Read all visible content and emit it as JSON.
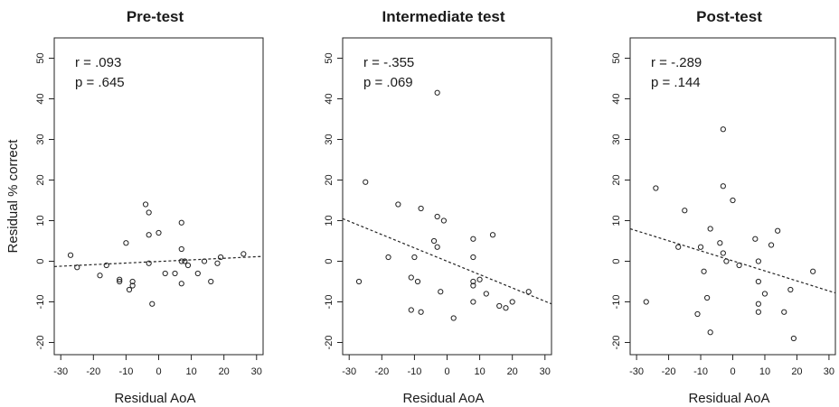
{
  "chart_data": [
    {
      "type": "scatter",
      "title": "Pre-test",
      "xlabel": "Residual AoA",
      "ylabel": "Residual % correct",
      "xlim": [
        -32,
        32
      ],
      "ylim": [
        -23,
        55
      ],
      "xticks": [
        -30,
        -20,
        -10,
        0,
        10,
        20,
        30
      ],
      "yticks": [
        -20,
        -10,
        0,
        10,
        20,
        30,
        40,
        50
      ],
      "annotations": [
        "r = .093",
        "p = .645"
      ],
      "trend_line": {
        "x": [
          -32,
          32
        ],
        "y": [
          -1.3,
          1.2
        ]
      },
      "points": [
        {
          "x": -27,
          "y": 1.5
        },
        {
          "x": -25,
          "y": -1.5
        },
        {
          "x": -18,
          "y": -3.5
        },
        {
          "x": -16,
          "y": -1
        },
        {
          "x": -12,
          "y": -4.5
        },
        {
          "x": -12,
          "y": -5
        },
        {
          "x": -10,
          "y": 4.5
        },
        {
          "x": -9,
          "y": -7
        },
        {
          "x": -8,
          "y": -5
        },
        {
          "x": -8,
          "y": -6
        },
        {
          "x": -4,
          "y": 14
        },
        {
          "x": -3,
          "y": 12
        },
        {
          "x": -3,
          "y": 6.5
        },
        {
          "x": -3,
          "y": -0.5
        },
        {
          "x": -2,
          "y": -10.5
        },
        {
          "x": 0,
          "y": 7
        },
        {
          "x": 2,
          "y": -3
        },
        {
          "x": 5,
          "y": -3
        },
        {
          "x": 7,
          "y": 9.5
        },
        {
          "x": 7,
          "y": 3
        },
        {
          "x": 7,
          "y": 0
        },
        {
          "x": 7,
          "y": -5.5
        },
        {
          "x": 8,
          "y": 0
        },
        {
          "x": 9,
          "y": -1
        },
        {
          "x": 12,
          "y": -3
        },
        {
          "x": 14,
          "y": 0
        },
        {
          "x": 16,
          "y": -5
        },
        {
          "x": 18,
          "y": -0.5
        },
        {
          "x": 19,
          "y": 1
        },
        {
          "x": 26,
          "y": 1.8
        }
      ]
    },
    {
      "type": "scatter",
      "title": "Intermediate test",
      "xlabel": "Residual AoA",
      "ylabel": "",
      "xlim": [
        -32,
        32
      ],
      "ylim": [
        -23,
        55
      ],
      "xticks": [
        -30,
        -20,
        -10,
        0,
        10,
        20,
        30
      ],
      "yticks": [
        -20,
        -10,
        0,
        10,
        20,
        30,
        40,
        50
      ],
      "annotations": [
        "r = -.355",
        "p = .069"
      ],
      "trend_line": {
        "x": [
          -32,
          32
        ],
        "y": [
          10.5,
          -10.5
        ]
      },
      "points": [
        {
          "x": -27,
          "y": -5
        },
        {
          "x": -25,
          "y": 19.5
        },
        {
          "x": -18,
          "y": 1
        },
        {
          "x": -15,
          "y": 14
        },
        {
          "x": -11,
          "y": -12
        },
        {
          "x": -11,
          "y": -4
        },
        {
          "x": -10,
          "y": 1
        },
        {
          "x": -9,
          "y": -5
        },
        {
          "x": -8,
          "y": -12.5
        },
        {
          "x": -8,
          "y": 13
        },
        {
          "x": -4,
          "y": 5
        },
        {
          "x": -3,
          "y": 3.5
        },
        {
          "x": -3,
          "y": 11
        },
        {
          "x": -3,
          "y": 41.5
        },
        {
          "x": -2,
          "y": -7.5
        },
        {
          "x": -1,
          "y": 10
        },
        {
          "x": 2,
          "y": -14
        },
        {
          "x": 8,
          "y": 5.5
        },
        {
          "x": 8,
          "y": 1
        },
        {
          "x": 8,
          "y": -5
        },
        {
          "x": 8,
          "y": -6
        },
        {
          "x": 8,
          "y": -10
        },
        {
          "x": 10,
          "y": -4.5
        },
        {
          "x": 12,
          "y": -8
        },
        {
          "x": 14,
          "y": 6.5
        },
        {
          "x": 16,
          "y": -11
        },
        {
          "x": 18,
          "y": -11.5
        },
        {
          "x": 20,
          "y": -10
        },
        {
          "x": 25,
          "y": -7.5
        }
      ]
    },
    {
      "type": "scatter",
      "title": "Post-test",
      "xlabel": "Residual AoA",
      "ylabel": "",
      "xlim": [
        -32,
        32
      ],
      "ylim": [
        -23,
        55
      ],
      "xticks": [
        -30,
        -20,
        -10,
        0,
        10,
        20,
        30
      ],
      "yticks": [
        -20,
        -10,
        0,
        10,
        20,
        30,
        40,
        50
      ],
      "annotations": [
        "r = -.289",
        "p = .144"
      ],
      "trend_line": {
        "x": [
          -32,
          32
        ],
        "y": [
          8,
          -7.8
        ]
      },
      "points": [
        {
          "x": -27,
          "y": -10
        },
        {
          "x": -24,
          "y": 18
        },
        {
          "x": -17,
          "y": 3.5
        },
        {
          "x": -15,
          "y": 12.5
        },
        {
          "x": -11,
          "y": -13
        },
        {
          "x": -10,
          "y": 3.5
        },
        {
          "x": -9,
          "y": -2.5
        },
        {
          "x": -8,
          "y": -9
        },
        {
          "x": -7,
          "y": -17.5
        },
        {
          "x": -7,
          "y": 8
        },
        {
          "x": -4,
          "y": 4.5
        },
        {
          "x": -3,
          "y": 2
        },
        {
          "x": -3,
          "y": 18.5
        },
        {
          "x": -3,
          "y": 32.5
        },
        {
          "x": -2,
          "y": 0
        },
        {
          "x": 0,
          "y": 15
        },
        {
          "x": 2,
          "y": -1
        },
        {
          "x": 7,
          "y": 5.5
        },
        {
          "x": 8,
          "y": 0
        },
        {
          "x": 8,
          "y": -5
        },
        {
          "x": 8,
          "y": -10.5
        },
        {
          "x": 8,
          "y": -12.5
        },
        {
          "x": 10,
          "y": -8
        },
        {
          "x": 12,
          "y": 4
        },
        {
          "x": 14,
          "y": 7.5
        },
        {
          "x": 16,
          "y": -12.5
        },
        {
          "x": 18,
          "y": -7
        },
        {
          "x": 19,
          "y": -19
        },
        {
          "x": 25,
          "y": -2.5
        }
      ]
    }
  ]
}
